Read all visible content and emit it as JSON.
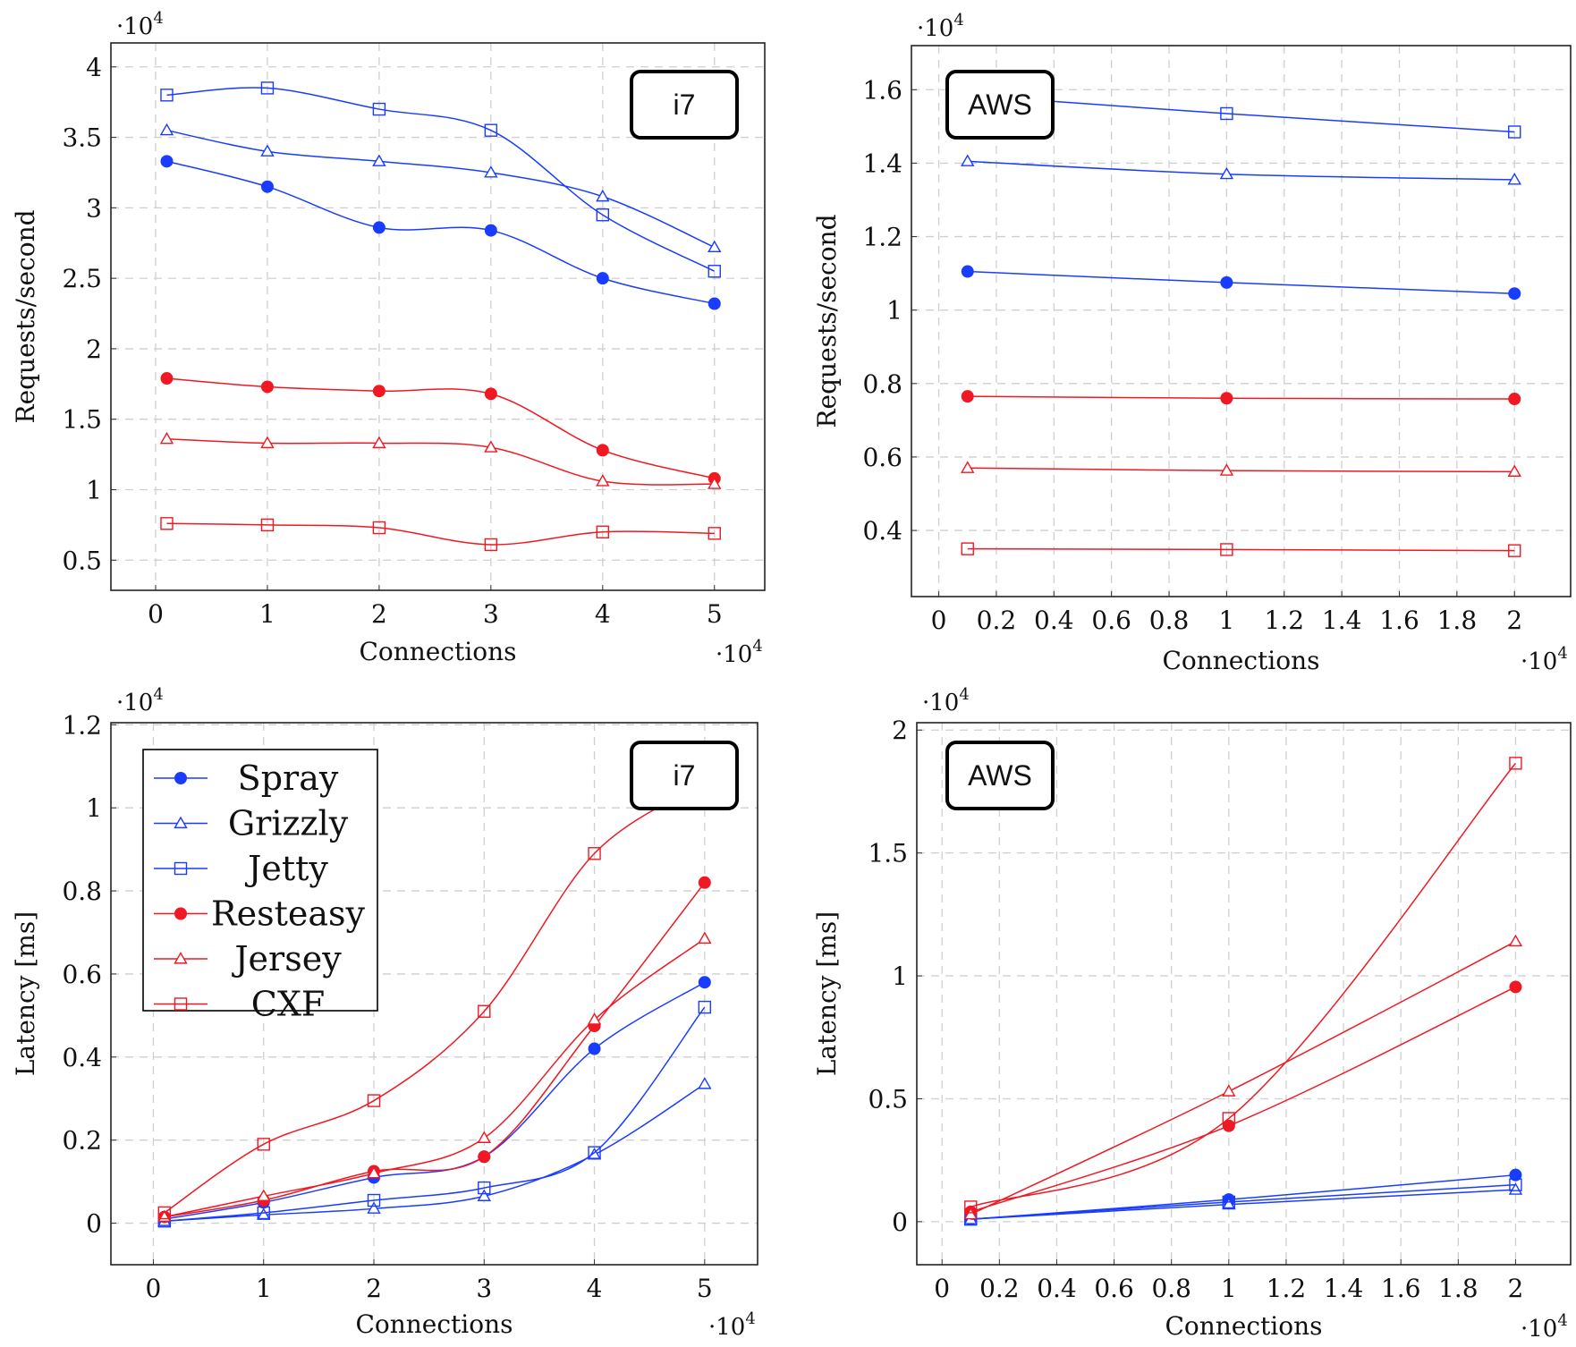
{
  "chart_data": [
    {
      "id": "i7-throughput",
      "type": "line",
      "title": "",
      "annotation": "i7",
      "annotation_position": "top-right",
      "xlabel": "Connections",
      "ylabel": "Requests/second",
      "x_multiplier": "·10^4",
      "y_multiplier": "·10^4",
      "xlim": [
        -0.4,
        5.45
      ],
      "ylim": [
        0.286,
        4.17
      ],
      "xticks": [
        0,
        1,
        2,
        3,
        4,
        5
      ],
      "xtick_labels": [
        "0",
        "1",
        "2",
        "3",
        "4",
        "5"
      ],
      "yticks": [
        0.5,
        1,
        1.5,
        2,
        2.5,
        3,
        3.5,
        4
      ],
      "ytick_labels": [
        "0.5",
        "1",
        "1.5",
        "2",
        "2.5",
        "3",
        "3.5",
        "4"
      ],
      "grid": true,
      "x": [
        0.1,
        1,
        2,
        3,
        4,
        5
      ],
      "series": [
        {
          "name": "Spray",
          "color": "#1a3cff",
          "marker": "circle",
          "values": [
            3.33,
            3.15,
            2.86,
            2.84,
            2.5,
            2.32
          ]
        },
        {
          "name": "Grizzly",
          "color": "#1a3cff",
          "marker": "triangle",
          "values": [
            3.55,
            3.4,
            3.33,
            3.25,
            3.08,
            2.72
          ]
        },
        {
          "name": "Jetty",
          "color": "#1a3cff",
          "marker": "square",
          "values": [
            3.8,
            3.85,
            3.7,
            3.55,
            2.95,
            2.55
          ]
        },
        {
          "name": "Resteasy",
          "color": "#f01822",
          "marker": "circle",
          "values": [
            1.79,
            1.73,
            1.7,
            1.68,
            1.28,
            1.08
          ]
        },
        {
          "name": "Jersey",
          "color": "#f01822",
          "marker": "triangle",
          "values": [
            1.36,
            1.33,
            1.33,
            1.3,
            1.06,
            1.04
          ]
        },
        {
          "name": "CXF",
          "color": "#f01822",
          "marker": "square",
          "values": [
            0.76,
            0.75,
            0.73,
            0.61,
            0.7,
            0.69
          ]
        }
      ]
    },
    {
      "id": "aws-throughput",
      "type": "line",
      "title": "",
      "annotation": "AWS",
      "annotation_position": "top-left",
      "xlabel": "Connections",
      "ylabel": "Requests/second",
      "x_multiplier": "·10^4",
      "y_multiplier": "·10^4",
      "xlim": [
        -0.095,
        2.195
      ],
      "ylim": [
        0.22,
        1.72
      ],
      "xticks": [
        0,
        0.2,
        0.4,
        0.6,
        0.8,
        1,
        1.2,
        1.4,
        1.6,
        1.8,
        2
      ],
      "xtick_labels": [
        "0",
        "0.2",
        "0.4",
        "0.6",
        "0.8",
        "1",
        "1.2",
        "1.4",
        "1.6",
        "1.8",
        "2"
      ],
      "yticks": [
        0.4,
        0.6,
        0.8,
        1,
        1.2,
        1.4,
        1.6
      ],
      "ytick_labels": [
        "0.4",
        "0.6",
        "0.8",
        "1",
        "1.2",
        "1.4",
        "1.6"
      ],
      "grid": true,
      "x": [
        0.1,
        1,
        2
      ],
      "series": [
        {
          "name": "Spray",
          "color": "#1a3cff",
          "marker": "circle",
          "values": [
            1.105,
            1.075,
            1.045
          ]
        },
        {
          "name": "Grizzly",
          "color": "#1a3cff",
          "marker": "triangle",
          "values": [
            1.405,
            1.37,
            1.355
          ]
        },
        {
          "name": "Jetty",
          "color": "#1a3cff",
          "marker": "square",
          "values": [
            1.585,
            1.535,
            1.485
          ]
        },
        {
          "name": "Resteasy",
          "color": "#f01822",
          "marker": "circle",
          "values": [
            0.765,
            0.76,
            0.758
          ]
        },
        {
          "name": "Jersey",
          "color": "#f01822",
          "marker": "triangle",
          "values": [
            0.57,
            0.563,
            0.56
          ]
        },
        {
          "name": "CXF",
          "color": "#f01822",
          "marker": "square",
          "values": [
            0.35,
            0.348,
            0.345
          ]
        }
      ]
    },
    {
      "id": "i7-latency",
      "type": "line",
      "title": "",
      "annotation": "i7",
      "annotation_position": "top-right",
      "xlabel": "Connections",
      "ylabel": "Latency [ms]",
      "x_multiplier": "·10^4",
      "y_multiplier": "·10^4",
      "xlim": [
        -0.385,
        5.48
      ],
      "ylim": [
        -0.1,
        1.205
      ],
      "xticks": [
        0,
        1,
        2,
        3,
        4,
        5
      ],
      "xtick_labels": [
        "0",
        "1",
        "2",
        "3",
        "4",
        "5"
      ],
      "yticks": [
        0,
        0.2,
        0.4,
        0.6,
        0.8,
        1,
        1.2
      ],
      "ytick_labels": [
        "0",
        "0.2",
        "0.4",
        "0.6",
        "0.8",
        "1",
        "1.2"
      ],
      "grid": true,
      "legend": "top-left",
      "x": [
        0.1,
        1,
        2,
        3,
        4,
        5
      ],
      "series": [
        {
          "name": "Spray",
          "color": "#1a3cff",
          "marker": "circle",
          "values": [
            0.01,
            0.05,
            0.11,
            0.16,
            0.42,
            0.58
          ]
        },
        {
          "name": "Grizzly",
          "color": "#1a3cff",
          "marker": "triangle",
          "values": [
            0.005,
            0.02,
            0.035,
            0.065,
            0.165,
            0.335
          ]
        },
        {
          "name": "Jetty",
          "color": "#1a3cff",
          "marker": "square",
          "values": [
            0.005,
            0.025,
            0.055,
            0.085,
            0.17,
            0.52
          ]
        },
        {
          "name": "Resteasy",
          "color": "#f01822",
          "marker": "circle",
          "values": [
            0.015,
            0.055,
            0.125,
            0.16,
            0.475,
            0.82
          ]
        },
        {
          "name": "Jersey",
          "color": "#f01822",
          "marker": "triangle",
          "values": [
            0.015,
            0.065,
            0.12,
            0.205,
            0.49,
            0.685
          ]
        },
        {
          "name": "CXF",
          "color": "#f01822",
          "marker": "square",
          "values": [
            0.025,
            0.19,
            0.295,
            0.51,
            0.89,
            1.06
          ]
        }
      ]
    },
    {
      "id": "aws-latency",
      "type": "line",
      "title": "",
      "annotation": "AWS",
      "annotation_position": "top-left",
      "xlabel": "Connections",
      "ylabel": "Latency [ms]",
      "x_multiplier": "·10^4",
      "y_multiplier": "·10^4",
      "xlim": [
        -0.088,
        2.192
      ],
      "ylim": [
        -0.175,
        2.03
      ],
      "xticks": [
        0,
        0.2,
        0.4,
        0.6,
        0.8,
        1,
        1.2,
        1.4,
        1.6,
        1.8,
        2
      ],
      "xtick_labels": [
        "0",
        "0.2",
        "0.4",
        "0.6",
        "0.8",
        "1",
        "1.2",
        "1.4",
        "1.6",
        "1.8",
        "2"
      ],
      "yticks": [
        0,
        0.5,
        1,
        1.5,
        2
      ],
      "ytick_labels": [
        "0",
        "0.5",
        "1",
        "1.5",
        "2"
      ],
      "grid": true,
      "x": [
        0.1,
        1,
        2
      ],
      "series": [
        {
          "name": "Spray",
          "color": "#1a3cff",
          "marker": "circle",
          "values": [
            0.01,
            0.09,
            0.19
          ]
        },
        {
          "name": "Grizzly",
          "color": "#1a3cff",
          "marker": "triangle",
          "values": [
            0.01,
            0.07,
            0.13
          ]
        },
        {
          "name": "Jetty",
          "color": "#1a3cff",
          "marker": "square",
          "values": [
            0.01,
            0.08,
            0.15
          ]
        },
        {
          "name": "Resteasy",
          "color": "#f01822",
          "marker": "circle",
          "values": [
            0.04,
            0.39,
            0.955
          ]
        },
        {
          "name": "Jersey",
          "color": "#f01822",
          "marker": "triangle",
          "values": [
            0.03,
            0.53,
            1.14
          ]
        },
        {
          "name": "CXF",
          "color": "#f01822",
          "marker": "square",
          "values": [
            0.06,
            0.42,
            1.865
          ]
        }
      ]
    }
  ],
  "legend": {
    "entries": [
      {
        "name": "Spray",
        "color": "#1a3cff",
        "marker": "circle"
      },
      {
        "name": "Grizzly",
        "color": "#1a3cff",
        "marker": "triangle"
      },
      {
        "name": "Jetty",
        "color": "#1a3cff",
        "marker": "square"
      },
      {
        "name": "Resteasy",
        "color": "#f01822",
        "marker": "circle"
      },
      {
        "name": "Jersey",
        "color": "#f01822",
        "marker": "triangle"
      },
      {
        "name": "CXF",
        "color": "#f01822",
        "marker": "square"
      }
    ]
  }
}
